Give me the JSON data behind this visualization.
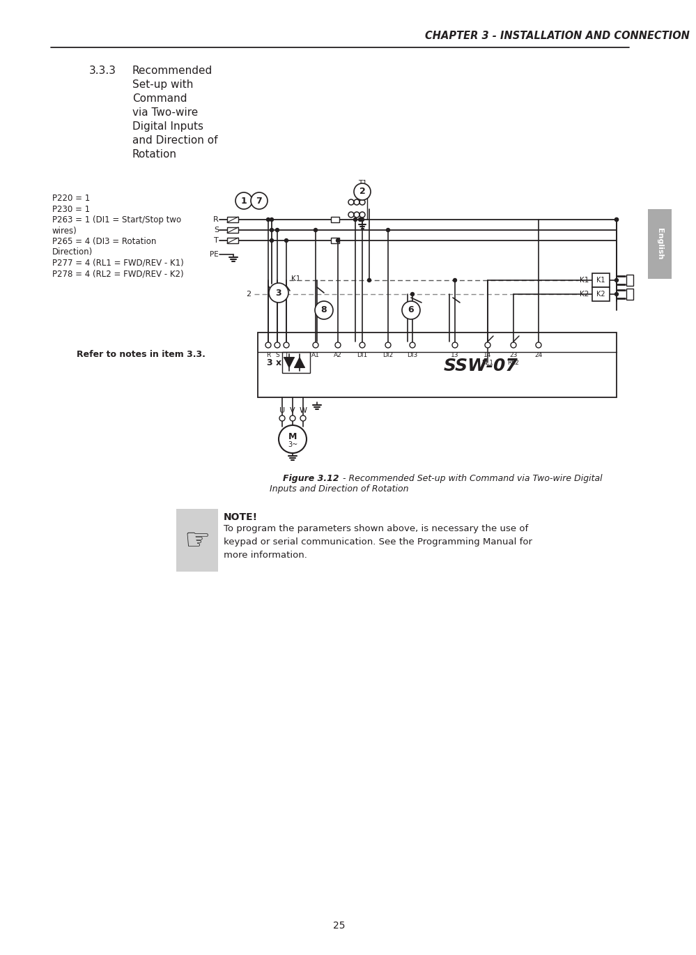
{
  "page_title": "CHAPTER 3 - INSTALLATION AND CONNECTION",
  "section_number": "3.3.3",
  "section_lines": [
    "Recommended",
    "Set-up with",
    "Command",
    "via Two-wire",
    "Digital Inputs",
    "and Direction of",
    "Rotation"
  ],
  "params": [
    "P220 = 1",
    "P230 = 1",
    "P263 = 1 (DI1 = Start/Stop two",
    "wires)",
    "P265 = 4 (DI3 = Rotation",
    "Direction)",
    "P277 = 4 (RL1 = FWD/REV - K1)",
    "P278 = 4 (RL2 = FWD/REV - K2)"
  ],
  "refer_note": "Refer to notes in item 3.3.",
  "fig_bold": "Figure 3.12",
  "fig_italic": " - Recommended Set-up with Command via Two-wire Digital",
  "fig_italic2": "Inputs and Direction of Rotation",
  "note_title": "NOTE!",
  "note_text": "To program the parameters shown above, is necessary the use of\nkeypad or serial communication. See the Programming Manual for\nmore information.",
  "page_number": "25",
  "english_tab": "English",
  "bg_color": "#ffffff",
  "tc": "#231f20",
  "lc": "#231f20"
}
